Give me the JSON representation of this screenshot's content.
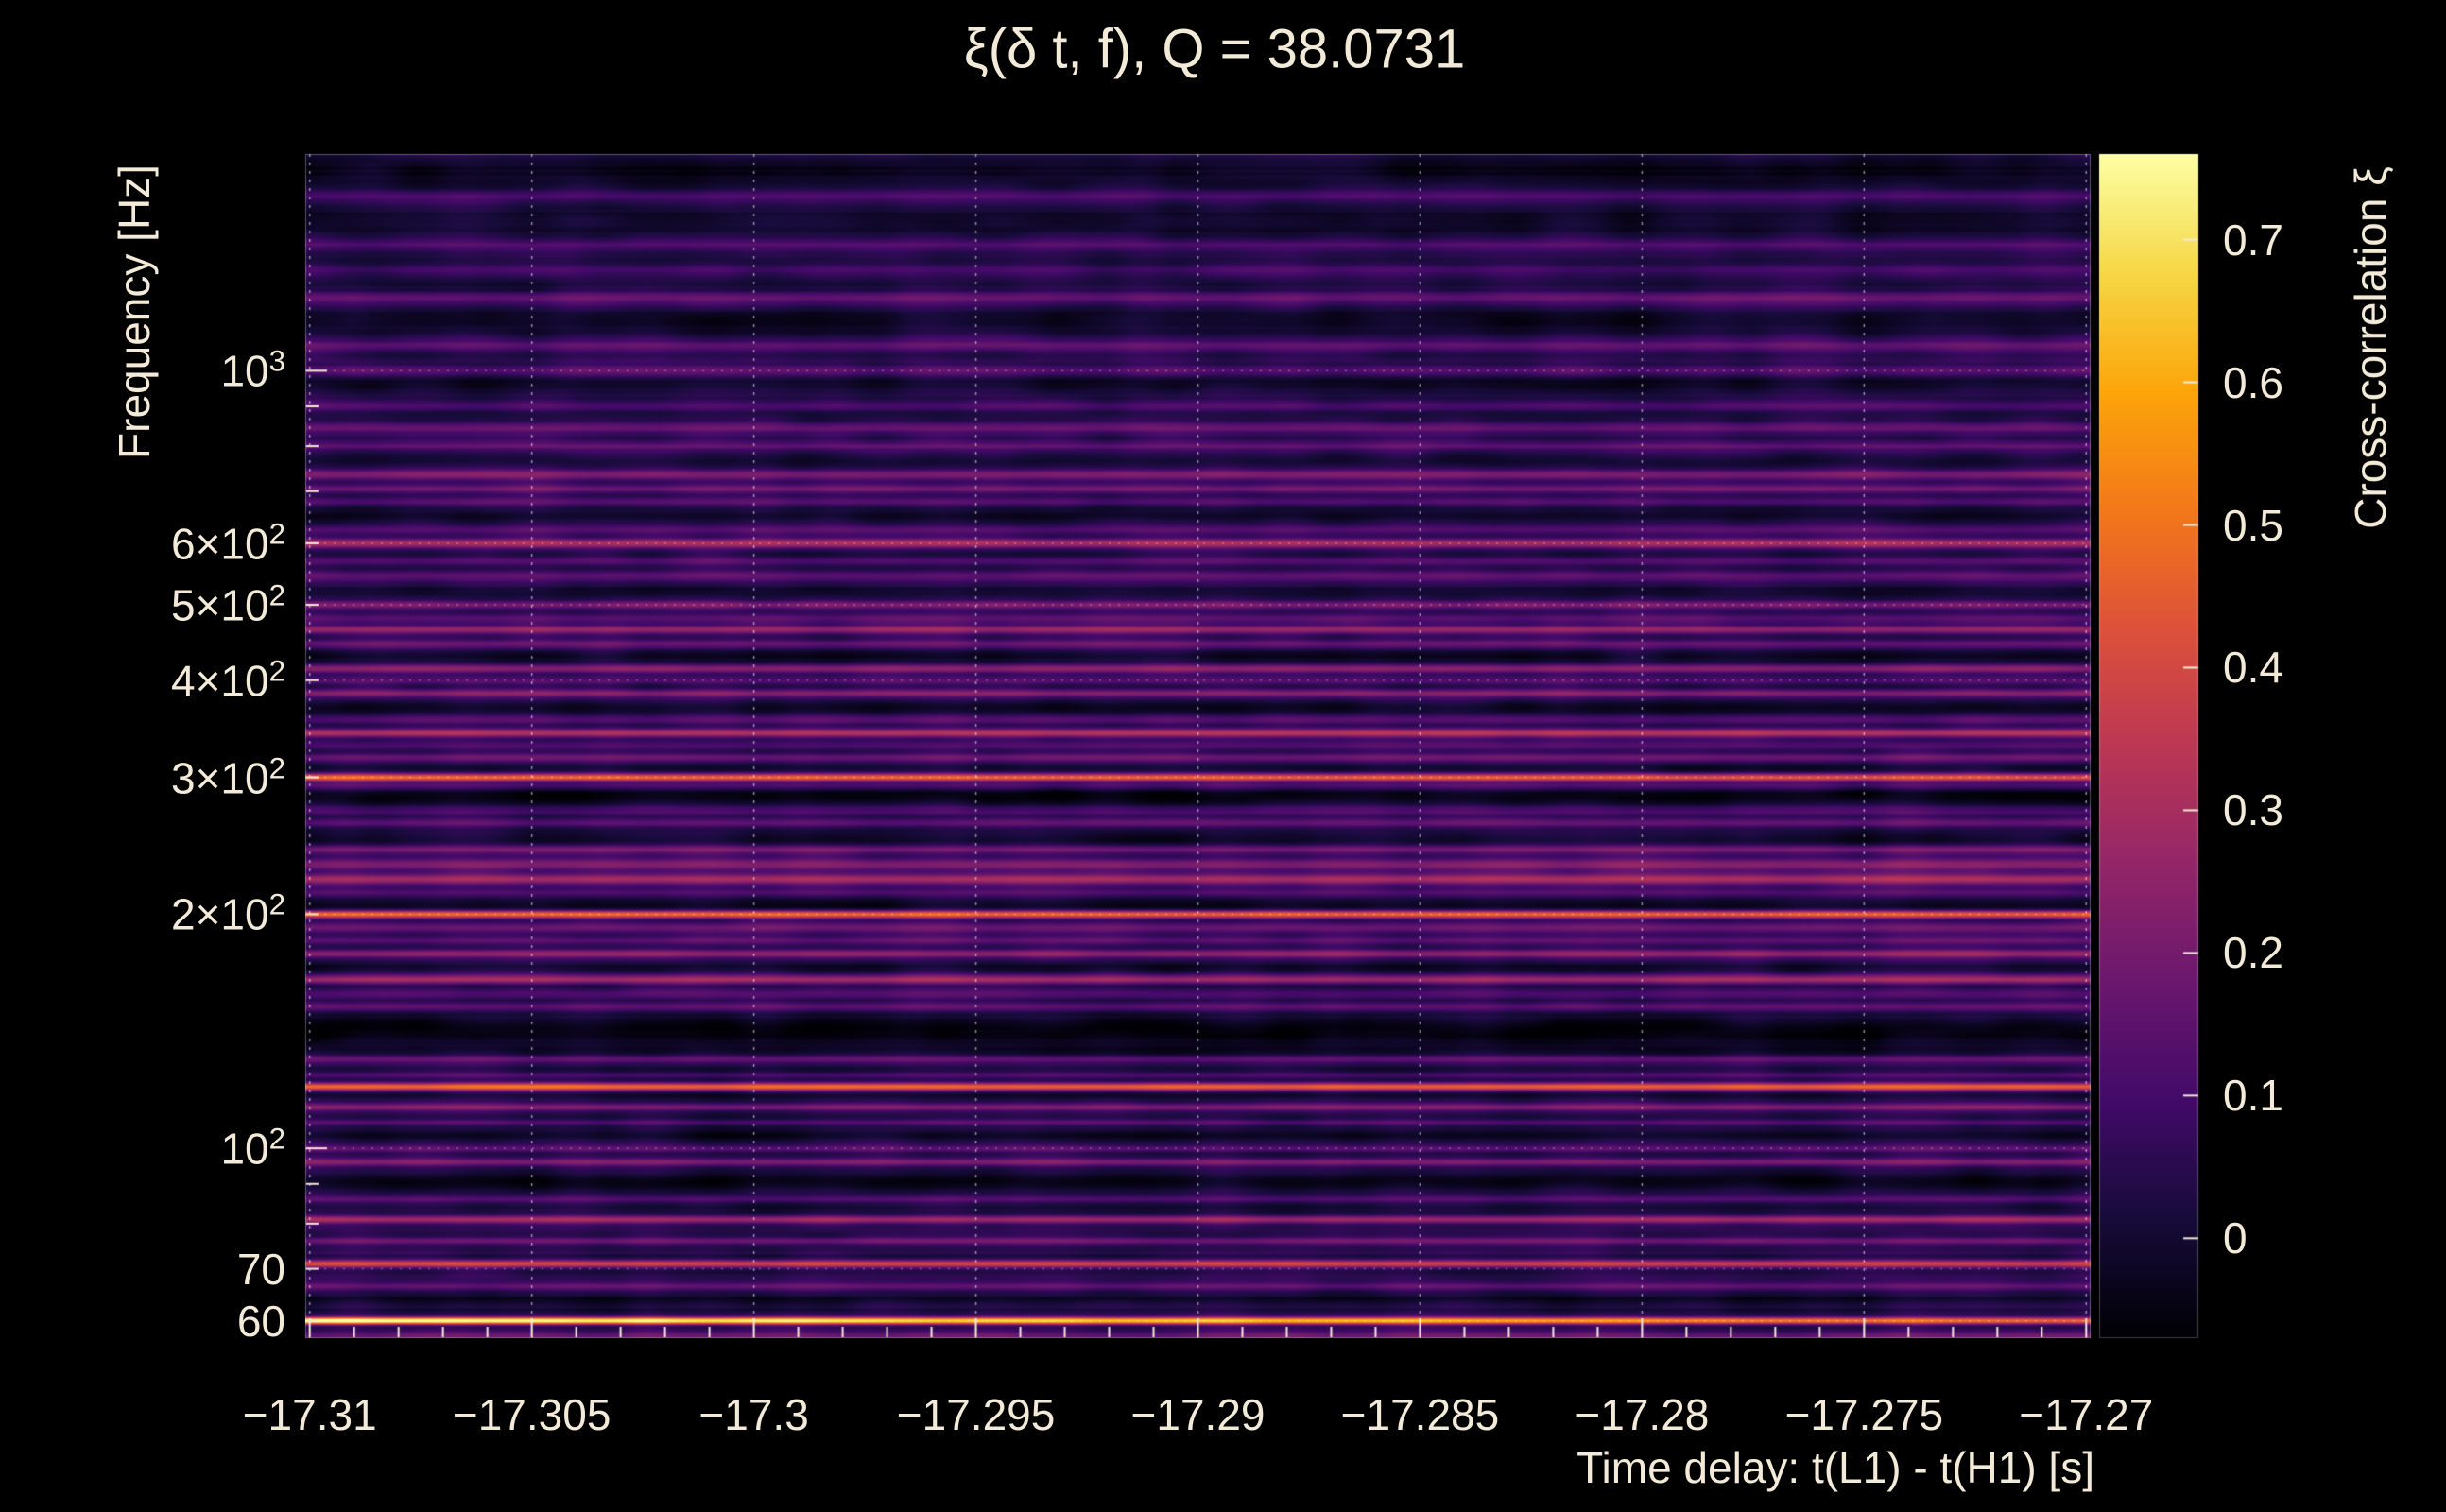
{
  "chart_data": {
    "type": "heatmap",
    "title": "ξ(δ t, f), Q = 38.0731",
    "xlabel": "Time delay: t(L1) - t(H1) [s]",
    "ylabel": "Frequency [Hz]",
    "colorbar_label": "Cross-correlation ξ",
    "x_range": [
      -17.3101,
      -17.2699
    ],
    "y_range_hz": [
      57,
      1900
    ],
    "y_scale": "log",
    "z_range": [
      -0.07,
      0.76
    ],
    "legend_position": "right-colorbar",
    "grid": true,
    "x_ticks": [
      {
        "v": -17.31,
        "label": "−17.31"
      },
      {
        "v": -17.305,
        "label": "−17.305"
      },
      {
        "v": -17.3,
        "label": "−17.3"
      },
      {
        "v": -17.295,
        "label": "−17.295"
      },
      {
        "v": -17.29,
        "label": "−17.29"
      },
      {
        "v": -17.285,
        "label": "−17.285"
      },
      {
        "v": -17.28,
        "label": "−17.28"
      },
      {
        "v": -17.275,
        "label": "−17.275"
      },
      {
        "v": -17.27,
        "label": "−17.27"
      }
    ],
    "x_minor_step": 0.001,
    "y_ticks": [
      {
        "v": 60,
        "label": "60"
      },
      {
        "v": 70,
        "label": "70"
      },
      {
        "v": 100,
        "label": "10^2"
      },
      {
        "v": 200,
        "label": "2×10^2"
      },
      {
        "v": 300,
        "label": "3×10^2"
      },
      {
        "v": 400,
        "label": "4×10^2"
      },
      {
        "v": 500,
        "label": "5×10^2"
      },
      {
        "v": 600,
        "label": "6×10^2"
      },
      {
        "v": 1000,
        "label": "10^3"
      }
    ],
    "y_minor_ticks": [
      60,
      70,
      80,
      90,
      100,
      200,
      300,
      400,
      500,
      600,
      700,
      800,
      900,
      1000
    ],
    "colorbar_ticks": [
      {
        "v": 0,
        "label": "0"
      },
      {
        "v": 0.1,
        "label": "0.1"
      },
      {
        "v": 0.2,
        "label": "0.2"
      },
      {
        "v": 0.3,
        "label": "0.3"
      },
      {
        "v": 0.4,
        "label": "0.4"
      },
      {
        "v": 0.5,
        "label": "0.5"
      },
      {
        "v": 0.6,
        "label": "0.6"
      },
      {
        "v": 0.7,
        "label": "0.7"
      }
    ],
    "colormap": {
      "name": "inferno",
      "stops": [
        [
          0,
          0,
          4
        ],
        [
          22,
          11,
          57
        ],
        [
          66,
          10,
          104
        ],
        [
          106,
          23,
          110
        ],
        [
          147,
          38,
          103
        ],
        [
          188,
          55,
          84
        ],
        [
          221,
          81,
          58
        ],
        [
          243,
          120,
          25
        ],
        [
          252,
          165,
          10
        ],
        [
          246,
          215,
          70
        ],
        [
          252,
          255,
          164
        ]
      ]
    },
    "style": {
      "background": "#000000",
      "text_color": "#f3ead8",
      "grid_color_vertical": "rgba(255,255,255,0.55)",
      "grid_color_horizontal": "rgba(255,255,255,0.32)",
      "tick_color": "#f3ead8"
    },
    "background_field": {
      "base": 0.038,
      "noise_seed": 1337,
      "blob_amp": 0.03,
      "row_amp": 0.028,
      "band_amp": 0.024,
      "streak_amp": 0.016
    },
    "spectral_lines": [
      {
        "f": 57.4,
        "a": 0.16,
        "w": 0.004,
        "d": 0
      },
      {
        "f": 60,
        "a": 0.77,
        "w": 0.0032,
        "d": 0.42
      },
      {
        "f": 64,
        "a": -0.05,
        "w": 0.005,
        "d": 0
      },
      {
        "f": 66.5,
        "a": 0.12,
        "w": 0.003,
        "d": 0
      },
      {
        "f": 71,
        "a": 0.36,
        "w": 0.0035,
        "d": 0.1
      },
      {
        "f": 76,
        "a": 0.14,
        "w": 0.003,
        "d": 0
      },
      {
        "f": 81,
        "a": 0.24,
        "w": 0.0035,
        "d": 0
      },
      {
        "f": 86,
        "a": 0.12,
        "w": 0.003,
        "d": 0
      },
      {
        "f": 91,
        "a": -0.07,
        "w": 0.008,
        "d": 0
      },
      {
        "f": 96,
        "a": 0.17,
        "w": 0.003,
        "d": 0
      },
      {
        "f": 100,
        "a": 0.1,
        "w": 0.003,
        "d": 0
      },
      {
        "f": 104,
        "a": -0.05,
        "w": 0.005,
        "d": 0
      },
      {
        "f": 108,
        "a": 0.12,
        "w": 0.003,
        "d": 0
      },
      {
        "f": 113,
        "a": 0.2,
        "w": 0.0035,
        "d": 0
      },
      {
        "f": 117,
        "a": -0.05,
        "w": 0.003,
        "d": 0
      },
      {
        "f": 120,
        "a": 0.44,
        "w": 0.0035,
        "d": 0.08
      },
      {
        "f": 124,
        "a": 0.1,
        "w": 0.003,
        "d": 0
      },
      {
        "f": 130,
        "a": 0.14,
        "w": 0.004,
        "d": 0
      },
      {
        "f": 136,
        "a": -0.04,
        "w": 0.006,
        "d": 0
      },
      {
        "f": 143,
        "a": -0.09,
        "w": 0.013,
        "d": 0
      },
      {
        "f": 152,
        "a": 0.12,
        "w": 0.004,
        "d": 0
      },
      {
        "f": 158,
        "a": 0.1,
        "w": 0.004,
        "d": 0
      },
      {
        "f": 165,
        "a": 0.26,
        "w": 0.004,
        "d": 0
      },
      {
        "f": 171,
        "a": -0.05,
        "w": 0.006,
        "d": 0
      },
      {
        "f": 178,
        "a": 0.22,
        "w": 0.004,
        "d": 0
      },
      {
        "f": 185,
        "a": 0.12,
        "w": 0.004,
        "d": 0
      },
      {
        "f": 192,
        "a": 0.15,
        "w": 0.004,
        "d": 0
      },
      {
        "f": 200,
        "a": 0.46,
        "w": 0.0035,
        "d": 0.08
      },
      {
        "f": 206,
        "a": -0.06,
        "w": 0.006,
        "d": 0
      },
      {
        "f": 213,
        "a": 0.1,
        "w": 0.004,
        "d": 0
      },
      {
        "f": 222,
        "a": 0.26,
        "w": 0.005,
        "d": 0
      },
      {
        "f": 232,
        "a": 0.2,
        "w": 0.005,
        "d": 0
      },
      {
        "f": 242,
        "a": 0.16,
        "w": 0.004,
        "d": 0
      },
      {
        "f": 252,
        "a": -0.05,
        "w": 0.006,
        "d": 0
      },
      {
        "f": 262,
        "a": 0.12,
        "w": 0.004,
        "d": 0
      },
      {
        "f": 272,
        "a": 0.1,
        "w": 0.004,
        "d": 0
      },
      {
        "f": 283,
        "a": -0.07,
        "w": 0.009,
        "d": 0
      },
      {
        "f": 292,
        "a": 0.1,
        "w": 0.003,
        "d": 0
      },
      {
        "f": 300,
        "a": 0.45,
        "w": 0.0035,
        "d": 0.12
      },
      {
        "f": 308,
        "a": -0.05,
        "w": 0.005,
        "d": 0
      },
      {
        "f": 318,
        "a": 0.16,
        "w": 0.004,
        "d": 0
      },
      {
        "f": 330,
        "a": 0.1,
        "w": 0.004,
        "d": 0
      },
      {
        "f": 342,
        "a": 0.28,
        "w": 0.004,
        "d": 0
      },
      {
        "f": 356,
        "a": 0.12,
        "w": 0.004,
        "d": 0
      },
      {
        "f": 370,
        "a": -0.05,
        "w": 0.006,
        "d": 0
      },
      {
        "f": 385,
        "a": 0.2,
        "w": 0.004,
        "d": 0
      },
      {
        "f": 400,
        "a": 0.12,
        "w": 0.004,
        "d": 0
      },
      {
        "f": 414,
        "a": 0.22,
        "w": 0.004,
        "d": 0
      },
      {
        "f": 430,
        "a": -0.04,
        "w": 0.006,
        "d": 0
      },
      {
        "f": 445,
        "a": 0.14,
        "w": 0.004,
        "d": 0
      },
      {
        "f": 465,
        "a": 0.24,
        "w": 0.004,
        "d": 0
      },
      {
        "f": 480,
        "a": 0.12,
        "w": 0.004,
        "d": 0
      },
      {
        "f": 500,
        "a": 0.18,
        "w": 0.004,
        "d": 0
      },
      {
        "f": 520,
        "a": -0.04,
        "w": 0.006,
        "d": 0
      },
      {
        "f": 545,
        "a": 0.12,
        "w": 0.004,
        "d": 0
      },
      {
        "f": 570,
        "a": 0.1,
        "w": 0.004,
        "d": 0
      },
      {
        "f": 600,
        "a": 0.26,
        "w": 0.0045,
        "d": 0
      },
      {
        "f": 625,
        "a": 0.1,
        "w": 0.004,
        "d": 0
      },
      {
        "f": 650,
        "a": -0.04,
        "w": 0.007,
        "d": 0
      },
      {
        "f": 680,
        "a": 0.12,
        "w": 0.004,
        "d": 0
      },
      {
        "f": 705,
        "a": 0.16,
        "w": 0.004,
        "d": 0
      },
      {
        "f": 735,
        "a": 0.2,
        "w": 0.0045,
        "d": 0
      },
      {
        "f": 770,
        "a": -0.04,
        "w": 0.006,
        "d": 0
      },
      {
        "f": 800,
        "a": 0.1,
        "w": 0.004,
        "d": 0
      },
      {
        "f": 845,
        "a": 0.14,
        "w": 0.0045,
        "d": 0
      },
      {
        "f": 900,
        "a": 0.08,
        "w": 0.004,
        "d": 0
      },
      {
        "f": 960,
        "a": -0.04,
        "w": 0.007,
        "d": 0
      },
      {
        "f": 1000,
        "a": 0.1,
        "w": 0.0045,
        "d": 0
      },
      {
        "f": 1080,
        "a": 0.12,
        "w": 0.005,
        "d": 0
      },
      {
        "f": 1160,
        "a": -0.04,
        "w": 0.008,
        "d": 0
      },
      {
        "f": 1240,
        "a": 0.13,
        "w": 0.005,
        "d": 0
      },
      {
        "f": 1340,
        "a": 0.07,
        "w": 0.005,
        "d": 0
      },
      {
        "f": 1450,
        "a": 0.09,
        "w": 0.005,
        "d": 0
      },
      {
        "f": 1560,
        "a": -0.05,
        "w": 0.01,
        "d": 0
      },
      {
        "f": 1680,
        "a": 0.08,
        "w": 0.005,
        "d": 0
      },
      {
        "f": 1800,
        "a": -0.06,
        "w": 0.015,
        "d": 0
      }
    ]
  }
}
